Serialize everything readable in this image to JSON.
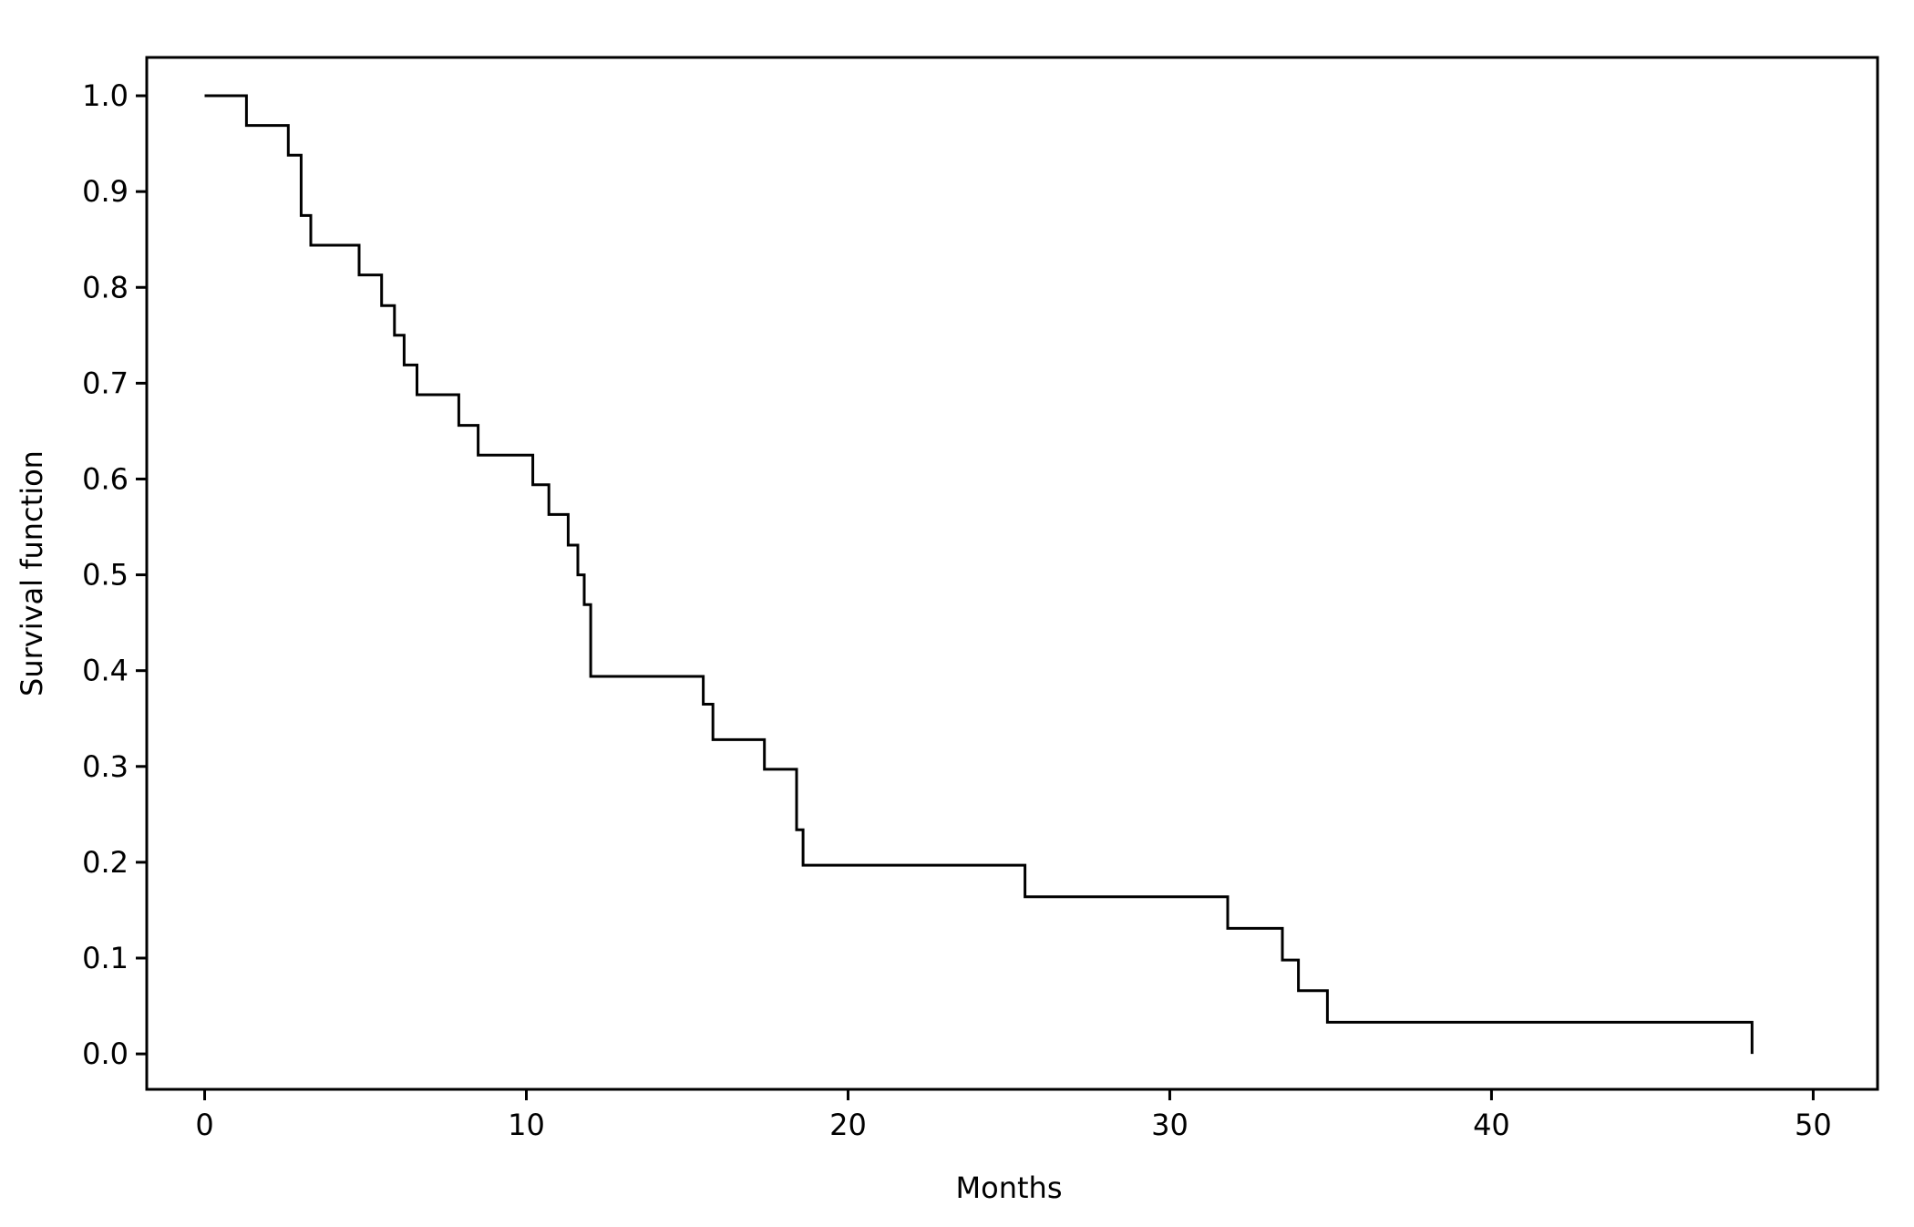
{
  "chart_data": {
    "type": "line",
    "line_shape": "step-post",
    "xlabel": "Months",
    "ylabel": "Survival function",
    "xlim": [
      -1.8,
      52
    ],
    "ylim": [
      -0.037,
      1.04
    ],
    "x_ticks": [
      0,
      10,
      20,
      30,
      40,
      50
    ],
    "y_ticks": [
      0.0,
      0.1,
      0.2,
      0.3,
      0.4,
      0.5,
      0.6,
      0.7,
      0.8,
      0.9,
      1.0
    ],
    "x_tick_labels": [
      "0",
      "10",
      "20",
      "30",
      "40",
      "50"
    ],
    "y_tick_labels": [
      "0.0",
      "0.1",
      "0.2",
      "0.3",
      "0.4",
      "0.5",
      "0.6",
      "0.7",
      "0.8",
      "0.9",
      "1.0"
    ],
    "grid": false,
    "line_color": "#000000",
    "series": [
      {
        "points": [
          [
            0.0,
            1.0
          ],
          [
            1.3,
            0.969
          ],
          [
            2.6,
            0.938
          ],
          [
            3.0,
            0.875
          ],
          [
            3.3,
            0.844
          ],
          [
            4.8,
            0.813
          ],
          [
            5.5,
            0.781
          ],
          [
            5.9,
            0.75
          ],
          [
            6.2,
            0.719
          ],
          [
            6.6,
            0.688
          ],
          [
            7.9,
            0.656
          ],
          [
            8.5,
            0.625
          ],
          [
            10.2,
            0.594
          ],
          [
            10.7,
            0.563
          ],
          [
            11.3,
            0.531
          ],
          [
            11.6,
            0.5
          ],
          [
            11.8,
            0.469
          ],
          [
            12.0,
            0.394
          ],
          [
            15.5,
            0.365
          ],
          [
            15.8,
            0.328
          ],
          [
            17.4,
            0.297
          ],
          [
            18.4,
            0.234
          ],
          [
            18.6,
            0.197
          ],
          [
            25.5,
            0.164
          ],
          [
            31.8,
            0.131
          ],
          [
            33.5,
            0.098
          ],
          [
            34.0,
            0.066
          ],
          [
            34.9,
            0.033
          ],
          [
            48.1,
            0.0
          ]
        ]
      }
    ]
  }
}
